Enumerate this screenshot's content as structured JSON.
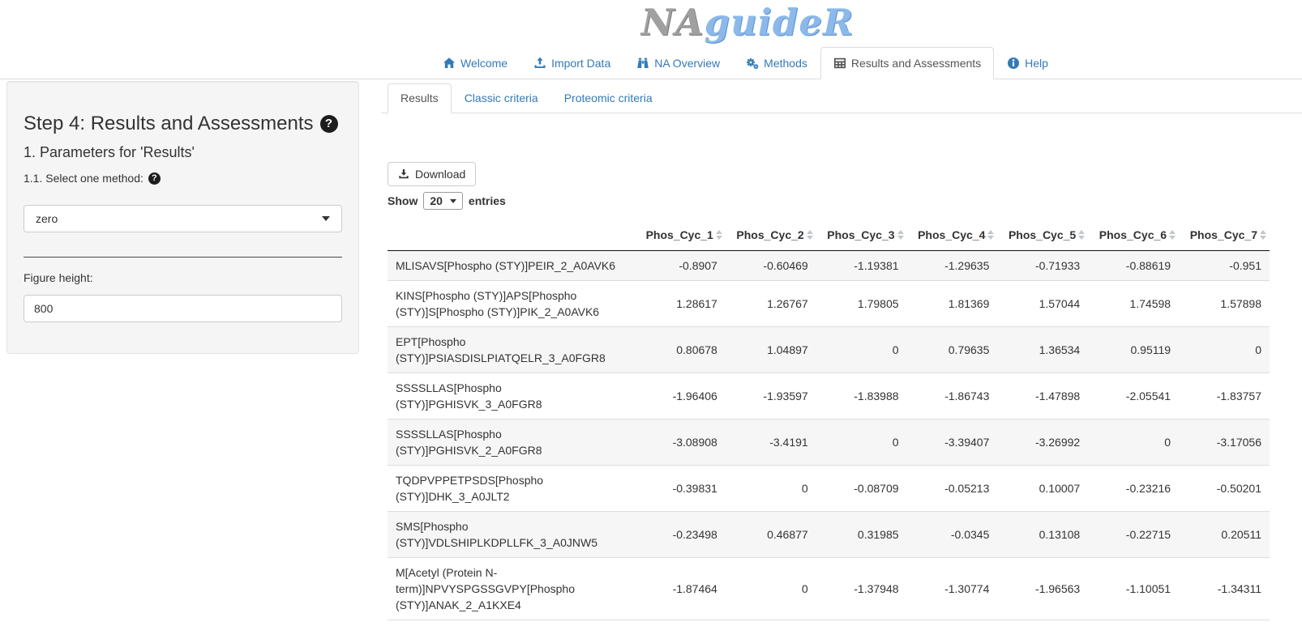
{
  "app": {
    "logo_part1": "NA",
    "logo_part2": "guideR"
  },
  "colors": {
    "accent_blue": "#337ab7",
    "active_tab_text": "#555555",
    "panel_bg": "#f5f5f5",
    "stripe": "#f6f6f6",
    "header_border": "#111111"
  },
  "nav": {
    "tabs": [
      {
        "label": "Welcome",
        "icon": "home-icon",
        "active": false
      },
      {
        "label": "Import Data",
        "icon": "upload-icon",
        "active": false
      },
      {
        "label": "NA Overview",
        "icon": "binoculars-icon",
        "active": false
      },
      {
        "label": "Methods",
        "icon": "cogs-icon",
        "active": false
      },
      {
        "label": "Results and Assessments",
        "icon": "table-icon",
        "active": true
      },
      {
        "label": "Help",
        "icon": "info-circle-icon",
        "active": false
      }
    ]
  },
  "sidebar": {
    "title": "Step 4: Results and Assessments",
    "subtitle": "1. Parameters for 'Results'",
    "method_label": "1.1. Select one method:",
    "method_value": "zero",
    "figure_height_label": "Figure height:",
    "figure_height_value": "800"
  },
  "subtabs": [
    {
      "label": "Results",
      "active": true
    },
    {
      "label": "Classic criteria",
      "active": false
    },
    {
      "label": "Proteomic criteria",
      "active": false
    }
  ],
  "toolbar": {
    "download_label": "Download",
    "show_label": "Show",
    "entries_label": "entries",
    "page_length": "20"
  },
  "table": {
    "columns": [
      "Phos_Cyc_1",
      "Phos_Cyc_2",
      "Phos_Cyc_3",
      "Phos_Cyc_4",
      "Phos_Cyc_5",
      "Phos_Cyc_6",
      "Phos_Cyc_7"
    ],
    "rows": [
      {
        "name": "MLISAVS[Phospho (STY)]PEIR_2_A0AVK6",
        "values": [
          "-0.8907",
          "-0.60469",
          "-1.19381",
          "-1.29635",
          "-0.71933",
          "-0.88619",
          "-0.951"
        ]
      },
      {
        "name": "KINS[Phospho (STY)]APS[Phospho (STY)]S[Phospho (STY)]PIK_2_A0AVK6",
        "values": [
          "1.28617",
          "1.26767",
          "1.79805",
          "1.81369",
          "1.57044",
          "1.74598",
          "1.57898"
        ]
      },
      {
        "name": "EPT[Phospho (STY)]PSIASDISLPIATQELR_3_A0FGR8",
        "values": [
          "0.80678",
          "1.04897",
          "0",
          "0.79635",
          "1.36534",
          "0.95119",
          "0"
        ]
      },
      {
        "name": "SSSSLLAS[Phospho (STY)]PGHISVK_3_A0FGR8",
        "values": [
          "-1.96406",
          "-1.93597",
          "-1.83988",
          "-1.86743",
          "-1.47898",
          "-2.05541",
          "-1.83757"
        ]
      },
      {
        "name": "SSSSLLAS[Phospho (STY)]PGHISVK_2_A0FGR8",
        "values": [
          "-3.08908",
          "-3.4191",
          "0",
          "-3.39407",
          "-3.26992",
          "0",
          "-3.17056"
        ]
      },
      {
        "name": "TQDPVPPETPSDS[Phospho (STY)]DHK_3_A0JLT2",
        "values": [
          "-0.39831",
          "0",
          "-0.08709",
          "-0.05213",
          "0.10007",
          "-0.23216",
          "-0.50201"
        ]
      },
      {
        "name": "SMS[Phospho (STY)]VDLSHIPLKDPLLFK_3_A0JNW5",
        "values": [
          "-0.23498",
          "0.46877",
          "0.31985",
          "-0.0345",
          "0.13108",
          "-0.22715",
          "0.20511"
        ]
      },
      {
        "name": "M[Acetyl (Protein N-term)]NPVYSPGSSGVPY[Phospho (STY)]ANAK_2_A1KXE4",
        "values": [
          "-1.87464",
          "0",
          "-1.37948",
          "-1.30774",
          "-1.96563",
          "-1.10051",
          "-1.34311"
        ]
      }
    ]
  }
}
